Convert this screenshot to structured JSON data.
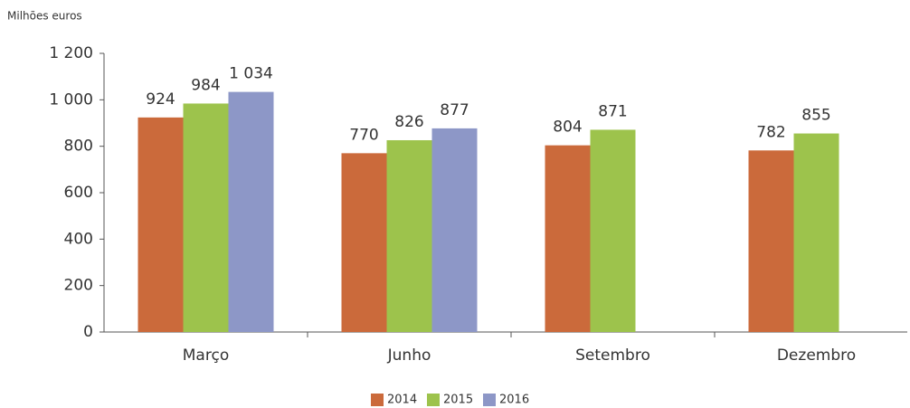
{
  "chart_data": {
    "type": "bar",
    "ylabel": "Milhões euros",
    "categories": [
      "Março",
      "Junho",
      "Setembro",
      "Dezembro"
    ],
    "series": [
      {
        "name": "2014",
        "color": "#cb6a3b",
        "values": [
          924,
          770,
          804,
          782
        ],
        "value_labels": [
          "924",
          "770",
          "804",
          "782"
        ]
      },
      {
        "name": "2015",
        "color": "#9dc34c",
        "values": [
          984,
          826,
          871,
          855
        ],
        "value_labels": [
          "984",
          "826",
          "871",
          "855"
        ]
      },
      {
        "name": "2016",
        "color": "#8d97c7",
        "values": [
          1034,
          877,
          null,
          null
        ],
        "value_labels": [
          "1 034",
          "877",
          null,
          null
        ]
      }
    ],
    "ylim": [
      0,
      1200
    ],
    "yticks": [
      0,
      200,
      400,
      600,
      800,
      {
        "value": 1000,
        "label": "1 000"
      },
      {
        "value": 1200,
        "label": "1 200"
      }
    ],
    "grid": false,
    "legend": "bottom"
  }
}
